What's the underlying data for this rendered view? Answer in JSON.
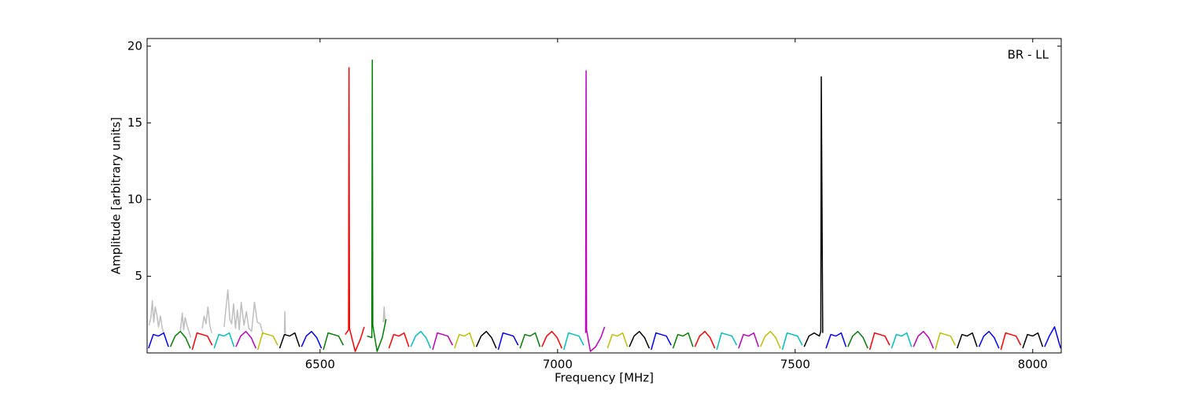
{
  "chart_data": {
    "type": "line",
    "x_label": "Frequency [MHz]",
    "y_label": "Amplitude [arbitrary units]",
    "annotation": "BR - LL",
    "xlim": [
      6136,
      8060
    ],
    "xticks": [
      6500,
      7000,
      7500,
      8000
    ],
    "ylim": [
      0,
      20.5
    ],
    "yticks": [
      5,
      10,
      15,
      20
    ],
    "grid": false,
    "series": [
      {
        "color": "#bfbfbf",
        "x": [
          6140,
          6144,
          6147,
          6150,
          6153,
          6157,
          6160,
          6164,
          6168,
          6172,
          null,
          6206,
          6210,
          6213,
          6216,
          6220,
          6224,
          6228,
          null,
          6252,
          6256,
          6260,
          6264,
          6268,
          6272,
          null,
          6298,
          6302,
          6306,
          6310,
          6314,
          6318,
          6322,
          6326,
          6330,
          6334,
          6340,
          6345,
          6350,
          6356,
          6362,
          6368,
          6374,
          6380,
          null,
          6425,
          6426,
          6427,
          null,
          6633,
          6634,
          6635,
          6636,
          6637
        ],
        "values": [
          1.8,
          2.3,
          3.4,
          2.0,
          3.0,
          2.4,
          1.7,
          2.4,
          1.6,
          1.2,
          null,
          1.4,
          2.6,
          1.5,
          2.3,
          1.8,
          1.4,
          1.0,
          null,
          1.6,
          2.4,
          1.9,
          3.0,
          1.8,
          1.3,
          null,
          1.7,
          2.9,
          4.1,
          2.2,
          1.9,
          3.2,
          1.6,
          2.8,
          1.5,
          3.3,
          1.8,
          2.7,
          1.6,
          1.4,
          3.3,
          2.0,
          1.9,
          1.2,
          null,
          1.3,
          2.7,
          1.2,
          null,
          2.0,
          2.5,
          3.0,
          2.4,
          1.8
        ]
      },
      {
        "color": "#0000ff",
        "x": [
          6139,
          6149,
          6160,
          6171,
          6181
        ],
        "values": [
          0.3,
          1.2,
          1.1,
          1.3,
          0.4
        ]
      },
      {
        "color": "#008000",
        "x": [
          6185,
          6195,
          6206,
          6217,
          6227
        ],
        "values": [
          0.4,
          1.1,
          1.4,
          1.0,
          0.3
        ]
      },
      {
        "color": "#ff0000",
        "x": [
          6231,
          6241,
          6252,
          6263,
          6273
        ],
        "values": [
          0.2,
          1.3,
          1.2,
          1.1,
          0.5
        ]
      },
      {
        "color": "#00bfbf",
        "x": [
          6277,
          6287,
          6298,
          6309,
          6319
        ],
        "values": [
          0.3,
          1.2,
          1.1,
          1.3,
          0.4
        ]
      },
      {
        "color": "#bf00bf",
        "x": [
          6323,
          6333,
          6344,
          6355,
          6365
        ],
        "values": [
          0.4,
          1.1,
          1.4,
          1.0,
          0.3
        ]
      },
      {
        "color": "#bfbf00",
        "x": [
          6369,
          6379,
          6390,
          6401,
          6411
        ],
        "values": [
          0.2,
          1.3,
          1.2,
          1.1,
          0.5
        ]
      },
      {
        "color": "#000000",
        "x": [
          6415,
          6425,
          6436,
          6447,
          6457
        ],
        "values": [
          0.3,
          1.2,
          1.1,
          1.3,
          0.4
        ]
      },
      {
        "color": "#0000ff",
        "x": [
          6461,
          6471,
          6482,
          6493,
          6503
        ],
        "values": [
          0.4,
          1.1,
          1.4,
          1.0,
          0.3
        ]
      },
      {
        "color": "#008000",
        "x": [
          6507,
          6517,
          6528,
          6539,
          6549
        ],
        "values": [
          0.2,
          1.3,
          1.2,
          1.1,
          0.5
        ]
      },
      {
        "color": "#ff0000",
        "x": [
          6553,
          6560,
          6561,
          6562,
          6574,
          6585,
          6593
        ],
        "values": [
          1.2,
          1.5,
          18.6,
          1.6,
          0.1,
          0.9,
          1.7
        ]
      },
      {
        "color": "#008000",
        "x": [
          6599,
          6609,
          6610,
          6611,
          6620,
          6631,
          6639
        ],
        "values": [
          1.1,
          1.0,
          19.1,
          1.8,
          0.1,
          1.0,
          2.2
        ]
      },
      {
        "color": "#ff0000",
        "x": [
          6645,
          6655,
          6666,
          6677,
          6687
        ],
        "values": [
          0.3,
          1.2,
          1.1,
          1.3,
          0.4
        ]
      },
      {
        "color": "#00bfbf",
        "x": [
          6691,
          6701,
          6712,
          6723,
          6733
        ],
        "values": [
          0.4,
          1.1,
          1.4,
          1.0,
          0.3
        ]
      },
      {
        "color": "#bf00bf",
        "x": [
          6737,
          6747,
          6758,
          6769,
          6779
        ],
        "values": [
          0.2,
          1.3,
          1.2,
          1.1,
          0.5
        ]
      },
      {
        "color": "#bfbf00",
        "x": [
          6783,
          6793,
          6804,
          6815,
          6825
        ],
        "values": [
          0.3,
          1.2,
          1.1,
          1.3,
          0.4
        ]
      },
      {
        "color": "#000000",
        "x": [
          6829,
          6839,
          6850,
          6861,
          6871
        ],
        "values": [
          0.4,
          1.1,
          1.4,
          1.0,
          0.3
        ]
      },
      {
        "color": "#0000ff",
        "x": [
          6875,
          6885,
          6896,
          6907,
          6917
        ],
        "values": [
          0.2,
          1.3,
          1.2,
          1.1,
          0.5
        ]
      },
      {
        "color": "#008000",
        "x": [
          6921,
          6931,
          6942,
          6953,
          6963
        ],
        "values": [
          0.3,
          1.2,
          1.1,
          1.3,
          0.4
        ]
      },
      {
        "color": "#ff0000",
        "x": [
          6967,
          6977,
          6988,
          6999,
          7009
        ],
        "values": [
          0.4,
          1.1,
          1.4,
          1.0,
          0.3
        ]
      },
      {
        "color": "#00bfbf",
        "x": [
          7013,
          7023,
          7034,
          7045,
          7055
        ],
        "values": [
          0.2,
          1.3,
          1.2,
          1.1,
          0.5
        ]
      },
      {
        "color": "#bf00bf",
        "x": [
          7059,
          7060,
          7061,
          7069,
          7080,
          7091,
          7099
        ],
        "values": [
          1.3,
          18.4,
          1.5,
          0.1,
          0.4,
          1.0,
          1.7
        ]
      },
      {
        "color": "#bfbf00",
        "x": [
          7105,
          7115,
          7126,
          7137,
          7147
        ],
        "values": [
          0.3,
          1.2,
          1.1,
          1.3,
          0.4
        ]
      },
      {
        "color": "#000000",
        "x": [
          7151,
          7161,
          7172,
          7183,
          7193
        ],
        "values": [
          0.4,
          1.1,
          1.4,
          1.0,
          0.3
        ]
      },
      {
        "color": "#0000ff",
        "x": [
          7197,
          7207,
          7218,
          7229,
          7239
        ],
        "values": [
          0.2,
          1.3,
          1.2,
          1.1,
          0.5
        ]
      },
      {
        "color": "#008000",
        "x": [
          7243,
          7253,
          7264,
          7275,
          7285
        ],
        "values": [
          0.3,
          1.2,
          1.1,
          1.3,
          0.4
        ]
      },
      {
        "color": "#ff0000",
        "x": [
          7289,
          7299,
          7310,
          7321,
          7331
        ],
        "values": [
          0.4,
          1.1,
          1.4,
          1.0,
          0.3
        ]
      },
      {
        "color": "#00bfbf",
        "x": [
          7335,
          7345,
          7356,
          7367,
          7377
        ],
        "values": [
          0.2,
          1.3,
          1.2,
          1.1,
          0.5
        ]
      },
      {
        "color": "#bf00bf",
        "x": [
          7381,
          7391,
          7402,
          7413,
          7423
        ],
        "values": [
          0.3,
          1.2,
          1.1,
          1.3,
          0.4
        ]
      },
      {
        "color": "#bfbf00",
        "x": [
          7427,
          7437,
          7448,
          7459,
          7469
        ],
        "values": [
          0.4,
          1.1,
          1.4,
          1.0,
          0.3
        ]
      },
      {
        "color": "#00bfbf",
        "x": [
          7473,
          7483,
          7494,
          7505,
          7515
        ],
        "values": [
          0.2,
          1.3,
          1.2,
          1.1,
          0.5
        ]
      },
      {
        "color": "#000000",
        "x": [
          7519,
          7529,
          7540,
          7551,
          7554,
          7555,
          7558
        ],
        "values": [
          0.4,
          1.1,
          1.3,
          1.1,
          1.4,
          18.0,
          1.3
        ]
      },
      {
        "color": "#0000ff",
        "x": [
          7565,
          7575,
          7586,
          7597,
          7607
        ],
        "values": [
          0.3,
          1.2,
          1.1,
          1.3,
          0.4
        ]
      },
      {
        "color": "#008000",
        "x": [
          7611,
          7621,
          7632,
          7643,
          7653
        ],
        "values": [
          0.4,
          1.1,
          1.4,
          1.0,
          0.3
        ]
      },
      {
        "color": "#ff0000",
        "x": [
          7657,
          7667,
          7678,
          7689,
          7699
        ],
        "values": [
          0.2,
          1.3,
          1.2,
          1.1,
          0.5
        ]
      },
      {
        "color": "#00bfbf",
        "x": [
          7703,
          7713,
          7724,
          7735,
          7745
        ],
        "values": [
          0.3,
          1.2,
          1.1,
          1.3,
          0.4
        ]
      },
      {
        "color": "#bf00bf",
        "x": [
          7749,
          7759,
          7770,
          7781,
          7791
        ],
        "values": [
          0.4,
          1.1,
          1.4,
          1.0,
          0.3
        ]
      },
      {
        "color": "#bfbf00",
        "x": [
          7795,
          7805,
          7816,
          7827,
          7837
        ],
        "values": [
          0.2,
          1.3,
          1.2,
          1.1,
          0.5
        ]
      },
      {
        "color": "#000000",
        "x": [
          7841,
          7851,
          7862,
          7873,
          7883
        ],
        "values": [
          0.3,
          1.2,
          1.1,
          1.3,
          0.4
        ]
      },
      {
        "color": "#0000ff",
        "x": [
          7887,
          7897,
          7908,
          7919,
          7929
        ],
        "values": [
          0.4,
          1.1,
          1.4,
          1.0,
          0.3
        ]
      },
      {
        "color": "#ff0000",
        "x": [
          7933,
          7943,
          7954,
          7965,
          7975
        ],
        "values": [
          0.2,
          1.3,
          1.2,
          1.1,
          0.5
        ]
      },
      {
        "color": "#000000",
        "x": [
          7979,
          7989,
          8000,
          8011,
          8021
        ],
        "values": [
          0.3,
          1.2,
          1.1,
          1.3,
          0.4
        ]
      },
      {
        "color": "#0000ff",
        "x": [
          8025,
          8035,
          8046,
          8056,
          8059
        ],
        "values": [
          0.4,
          1.1,
          1.7,
          0.6,
          0.3
        ]
      }
    ]
  }
}
